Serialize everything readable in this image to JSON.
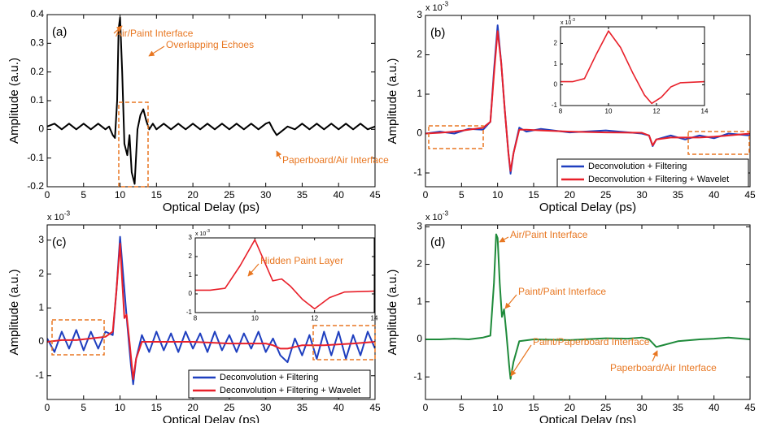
{
  "chart_data": [
    {
      "type": "line",
      "panel_label": "(a)",
      "xlabel": "Optical Delay (ps)",
      "ylabel": "Amplitude (a.u.)",
      "xlim": [
        0,
        45
      ],
      "xticks": [
        0,
        5,
        10,
        15,
        20,
        25,
        30,
        35,
        40,
        45
      ],
      "ylim": [
        -0.2,
        0.4
      ],
      "yticks": [
        -0.2,
        -0.1,
        0,
        0.1,
        0.2,
        0.3,
        0.4
      ],
      "series": [
        {
          "color": "#000000",
          "x": [
            0,
            1,
            2,
            3,
            4,
            5,
            6,
            7,
            8,
            8.5,
            9,
            9.3,
            9.6,
            9.8,
            10,
            10.3,
            10.6,
            11,
            11.3,
            11.6,
            12,
            12.4,
            12.8,
            13.2,
            13.6,
            14,
            14.5,
            15,
            16,
            17,
            18,
            19,
            20,
            21,
            22,
            23,
            24,
            25,
            26,
            27,
            28,
            29,
            30,
            30.5,
            31,
            31.5,
            32,
            33,
            34,
            35,
            36,
            37,
            38,
            39,
            40,
            41,
            42,
            43,
            44,
            45
          ],
          "values": [
            0.01,
            0.02,
            0.0,
            0.02,
            0.0,
            0.02,
            0.0,
            0.02,
            0.0,
            0.01,
            -0.02,
            -0.03,
            0.1,
            0.35,
            0.39,
            0.2,
            -0.05,
            -0.09,
            -0.02,
            -0.15,
            -0.19,
            0.0,
            0.05,
            0.07,
            0.03,
            0.0,
            0.02,
            0.0,
            0.02,
            0.0,
            0.02,
            0.0,
            0.02,
            0.0,
            0.02,
            0.0,
            0.02,
            0.0,
            0.02,
            0.0,
            0.02,
            0.0,
            0.02,
            0.025,
            0.0,
            -0.02,
            -0.01,
            0.01,
            0.0,
            0.02,
            0.0,
            0.02,
            0.0,
            0.02,
            0.0,
            0.02,
            0.0,
            0.02,
            0.0,
            0.01
          ]
        }
      ],
      "annotations": [
        {
          "text": "Air/Paint Interface"
        },
        {
          "text": "Overlapping Echoes"
        },
        {
          "text": "Paperboard/Air Interface"
        }
      ]
    },
    {
      "type": "line",
      "panel_label": "(b)",
      "xlabel": "Optical Delay (ps)",
      "ylabel": "Amplitude (a.u.)",
      "y_scale_base": "x 10",
      "y_scale_exponent": "-3",
      "xlim": [
        0,
        45
      ],
      "xticks": [
        0,
        5,
        10,
        15,
        20,
        25,
        30,
        35,
        40,
        45
      ],
      "ylim": [
        -1.35,
        3
      ],
      "yticks": [
        -1,
        0,
        1,
        2,
        3
      ],
      "legend": "lower-right",
      "series": [
        {
          "name": "Deconvolution + Filtering",
          "color": "#1f3fbf",
          "x": [
            0,
            2,
            4,
            6,
            8,
            9,
            9.5,
            10,
            10.5,
            11,
            11.5,
            11.8,
            12.2,
            13,
            14,
            16,
            20,
            25,
            30,
            31,
            31.5,
            32,
            34,
            36,
            38,
            40,
            42,
            45
          ],
          "values": [
            0,
            0.05,
            0.0,
            0.12,
            0.1,
            0.3,
            1.6,
            2.75,
            1.8,
            0.6,
            -0.5,
            -1.02,
            -0.5,
            0.15,
            0.05,
            0.12,
            0.03,
            0.08,
            0.0,
            -0.05,
            -0.32,
            -0.15,
            -0.05,
            -0.15,
            -0.05,
            -0.12,
            0.0,
            -0.05
          ]
        },
        {
          "name": "Deconvolution + Filtering + Wavelet",
          "color": "#e8202a",
          "x": [
            0,
            2,
            4,
            6,
            8,
            9,
            9.5,
            10,
            10.5,
            11,
            11.5,
            11.8,
            12.2,
            13,
            14,
            16,
            20,
            25,
            30,
            31,
            31.5,
            32,
            34,
            36,
            38,
            40,
            42,
            45
          ],
          "values": [
            0,
            0.02,
            0.05,
            0.1,
            0.15,
            0.3,
            1.5,
            2.6,
            1.8,
            0.6,
            -0.5,
            -0.95,
            -0.5,
            0.1,
            0.1,
            0.08,
            0.05,
            0.03,
            0.02,
            -0.05,
            -0.3,
            -0.15,
            -0.1,
            -0.1,
            -0.1,
            -0.08,
            -0.05,
            0
          ]
        }
      ]
    },
    {
      "type": "line",
      "inset": true,
      "y_scale_base": "x 10",
      "y_scale_exponent": "-3",
      "xlim": [
        8,
        14
      ],
      "xticks": [
        8,
        10,
        12,
        14
      ],
      "ylim": [
        -1,
        2.8
      ],
      "yticks": [
        -1,
        0,
        1,
        2
      ],
      "series": [
        {
          "color": "#e8202a",
          "x": [
            8,
            8.5,
            9,
            9.5,
            10,
            10.5,
            11,
            11.5,
            11.8,
            12.2,
            12.6,
            13,
            14
          ],
          "values": [
            0.15,
            0.15,
            0.3,
            1.5,
            2.6,
            1.8,
            0.6,
            -0.5,
            -0.9,
            -0.6,
            -0.1,
            0.1,
            0.15
          ]
        }
      ]
    },
    {
      "type": "line",
      "panel_label": "(c)",
      "xlabel": "Optical Delay (ps)",
      "ylabel": "Amplitude (a.u.)",
      "y_scale_base": "x 10",
      "y_scale_exponent": "-3",
      "xlim": [
        0,
        45
      ],
      "xticks": [
        0,
        5,
        10,
        15,
        20,
        25,
        30,
        35,
        40,
        45
      ],
      "ylim": [
        -1.7,
        3.45
      ],
      "yticks": [
        -1,
        0,
        1,
        2,
        3
      ],
      "legend": "lower-right",
      "series": [
        {
          "name": "Deconvolution + Filtering",
          "color": "#1f3fbf",
          "x": [
            0,
            1,
            2,
            3,
            4,
            5,
            6,
            7,
            8,
            9,
            9.5,
            10,
            10.5,
            11,
            11.5,
            11.8,
            12.2,
            13,
            14,
            15,
            16,
            17,
            18,
            19,
            20,
            21,
            22,
            23,
            24,
            25,
            26,
            27,
            28,
            29,
            30,
            31,
            32,
            33,
            34,
            35,
            36,
            37,
            38,
            39,
            40,
            41,
            42,
            43,
            44,
            45
          ],
          "values": [
            0.1,
            -0.3,
            0.3,
            -0.2,
            0.35,
            -0.25,
            0.3,
            -0.2,
            0.3,
            0.2,
            1.5,
            3.1,
            1.8,
            0.5,
            -0.7,
            -1.25,
            -0.5,
            0.2,
            -0.3,
            0.3,
            -0.25,
            0.25,
            -0.3,
            0.3,
            -0.2,
            0.25,
            -0.3,
            0.3,
            -0.25,
            0.2,
            -0.3,
            0.25,
            -0.2,
            0.3,
            -0.3,
            0.1,
            -0.4,
            -0.6,
            0.1,
            -0.4,
            0.2,
            -0.5,
            0.3,
            -0.4,
            0.3,
            -0.5,
            0.2,
            -0.4,
            0.3,
            -0.2
          ]
        },
        {
          "name": "Deconvolution + Filtering + Wavelet",
          "color": "#e8202a",
          "x": [
            0,
            2,
            4,
            6,
            8,
            9,
            9.5,
            10,
            10.3,
            10.6,
            10.9,
            11.3,
            11.8,
            12.2,
            13,
            14,
            16,
            20,
            25,
            30,
            31,
            32,
            33,
            35,
            38,
            42,
            45
          ],
          "values": [
            0,
            0.05,
            0.05,
            0.1,
            0.15,
            0.3,
            1.5,
            2.9,
            1.8,
            0.7,
            0.8,
            0,
            -1.1,
            -0.5,
            0,
            0,
            0,
            0,
            -0.05,
            -0.05,
            -0.1,
            -0.2,
            -0.2,
            -0.1,
            -0.1,
            -0.05,
            0
          ]
        }
      ]
    },
    {
      "type": "line",
      "inset": true,
      "y_scale_base": "x 10",
      "y_scale_exponent": "-3",
      "xlim": [
        8,
        14
      ],
      "xticks": [
        8,
        10,
        12,
        14
      ],
      "ylim": [
        -1,
        3
      ],
      "yticks": [
        -1,
        0,
        1,
        2,
        3
      ],
      "series": [
        {
          "color": "#e8202a",
          "x": [
            8,
            8.5,
            9,
            9.5,
            10,
            10.3,
            10.6,
            10.9,
            11.2,
            11.6,
            12,
            12.5,
            13,
            14
          ],
          "values": [
            0.2,
            0.2,
            0.3,
            1.5,
            2.9,
            1.8,
            0.7,
            0.8,
            0.4,
            -0.3,
            -0.8,
            -0.2,
            0.1,
            0.15
          ]
        }
      ],
      "annotations": [
        {
          "text": "Hidden Paint Layer"
        }
      ]
    },
    {
      "type": "line",
      "panel_label": "(d)",
      "xlabel": "Optical Delay (ps)",
      "ylabel": "Amplitude (a.u.)",
      "y_scale_base": "x 10",
      "y_scale_exponent": "-3",
      "xlim": [
        0,
        45
      ],
      "xticks": [
        0,
        5,
        10,
        15,
        20,
        25,
        30,
        35,
        40,
        45
      ],
      "ylim": [
        -1.6,
        3.05
      ],
      "yticks": [
        -1,
        0,
        1,
        2,
        3
      ],
      "series": [
        {
          "color": "#1e8a3a",
          "x": [
            0,
            2,
            4,
            6,
            8,
            9,
            9.5,
            9.8,
            10,
            10.3,
            10.6,
            10.9,
            11.2,
            11.6,
            11.8,
            12.2,
            13,
            15,
            20,
            25,
            28,
            30,
            31,
            32,
            33,
            35,
            38,
            40,
            42,
            45
          ],
          "values": [
            0,
            0,
            0.02,
            0,
            0.05,
            0.1,
            1.5,
            2.8,
            2.7,
            1.5,
            0.6,
            0.8,
            0.2,
            -0.7,
            -1.05,
            -0.6,
            -0.05,
            0,
            -0.02,
            0.03,
            0.02,
            0.05,
            0,
            -0.2,
            -0.15,
            -0.05,
            0,
            0.02,
            0.05,
            0
          ]
        }
      ],
      "annotations": [
        {
          "text": "Air/Paint Interface"
        },
        {
          "text": "Paint/Paint Interface"
        },
        {
          "text": "Paint/Paperboard Interface"
        },
        {
          "text": "Paperboard/Air Interface"
        }
      ]
    }
  ]
}
